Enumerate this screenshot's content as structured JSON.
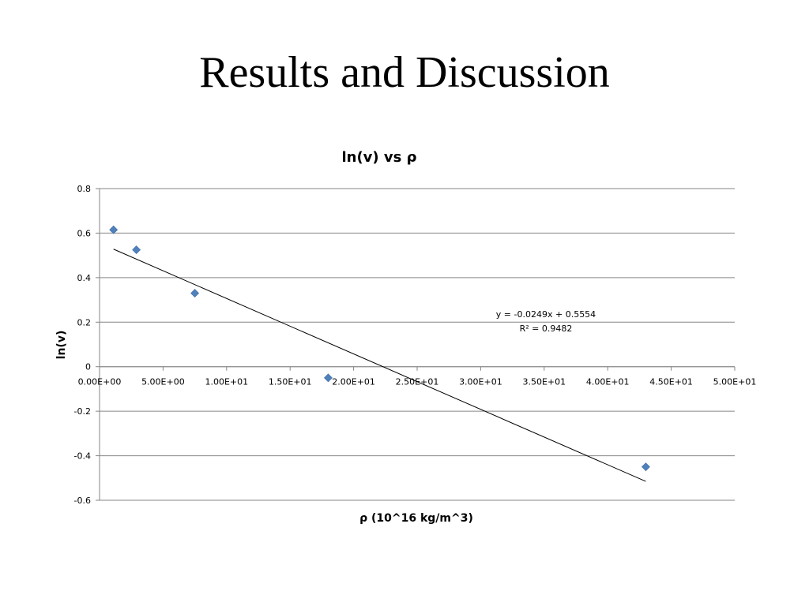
{
  "slide": {
    "title": "Results and Discussion"
  },
  "chart_data": {
    "type": "scatter",
    "title": "ln(v) vs ρ",
    "xlabel": "ρ (10^16 kg/m^3)",
    "ylabel": "ln(v)",
    "xlim": [
      0,
      50
    ],
    "ylim": [
      -0.6,
      0.8
    ],
    "x_ticks": [
      0,
      5,
      10,
      15,
      20,
      25,
      30,
      35,
      40,
      45,
      50
    ],
    "x_tick_labels": [
      "0.00E+00",
      "5.00E+00",
      "1.00E+01",
      "1.50E+01",
      "2.00E+01",
      "2.50E+01",
      "3.00E+01",
      "3.50E+01",
      "4.00E+01",
      "4.50E+01",
      "5.00E+01"
    ],
    "y_ticks": [
      0.8,
      0.6,
      0.4,
      0.2,
      0,
      -0.2,
      -0.4,
      -0.6
    ],
    "y_tick_labels": [
      "0.8",
      "0.6",
      "0.4",
      "0.2",
      "0",
      "-0.2",
      "-0.4",
      "-0.6"
    ],
    "grid": true,
    "marker_color": "#4f81bd",
    "series": [
      {
        "x": [
          1.1,
          2.9,
          7.5,
          18.0,
          43.0
        ],
        "y": [
          0.615,
          0.525,
          0.33,
          -0.05,
          -0.45
        ]
      }
    ],
    "trendline": {
      "slope": -0.0249,
      "intercept": 0.5554,
      "x_range": [
        1.1,
        43.0
      ],
      "equation": "y = -0.0249x + 0.5554",
      "r_squared": "R² = 0.9482"
    }
  }
}
